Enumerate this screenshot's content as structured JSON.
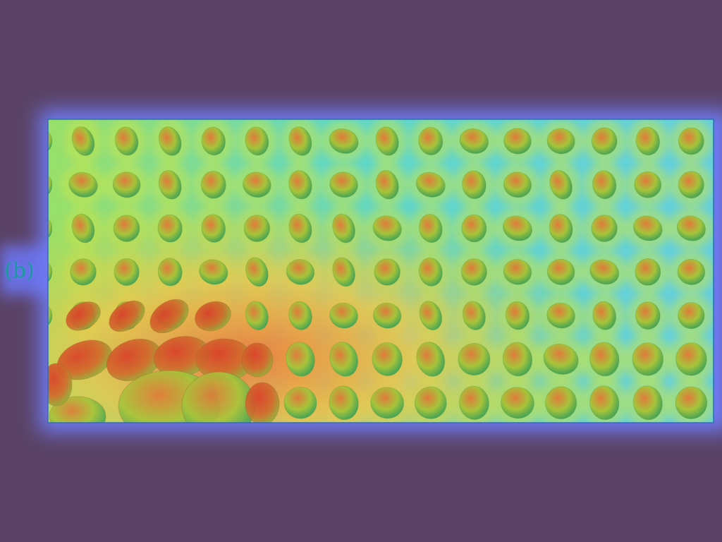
{
  "figure": {
    "panel_label": "(b)"
  },
  "colors": {
    "background": "#5a4366",
    "glow": "#6f7af5",
    "cold": "#4fb7ff",
    "cool": "#52e0d6",
    "warm": "#b7e04a",
    "hot": "#e4512a",
    "frame": "#2f6fb0"
  },
  "lattice": {
    "columns": 15,
    "rows": 7
  }
}
